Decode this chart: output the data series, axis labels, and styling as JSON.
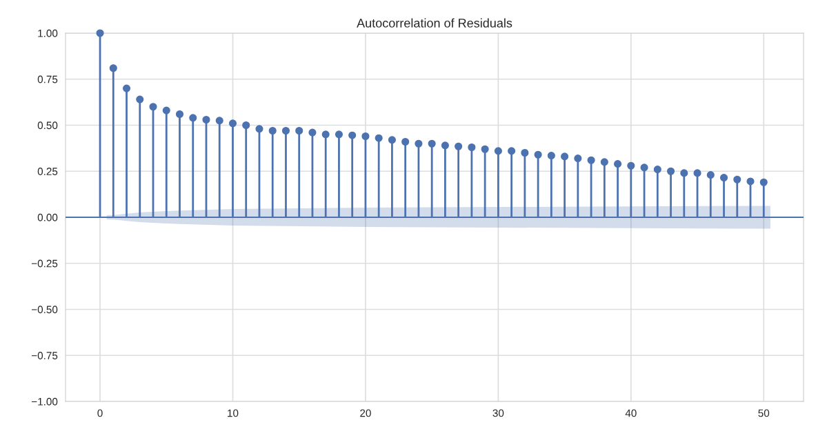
{
  "chart_data": {
    "type": "lollipop",
    "title": "Autocorrelation of Residuals",
    "x": [
      0,
      1,
      2,
      3,
      4,
      5,
      6,
      7,
      8,
      9,
      10,
      11,
      12,
      13,
      14,
      15,
      16,
      17,
      18,
      19,
      20,
      21,
      22,
      23,
      24,
      25,
      26,
      27,
      28,
      29,
      30,
      31,
      32,
      33,
      34,
      35,
      36,
      37,
      38,
      39,
      40,
      41,
      42,
      43,
      44,
      45,
      46,
      47,
      48,
      49,
      50
    ],
    "series": [
      {
        "type": "line",
        "color": "#4c72b0",
        "x": [
          -2.6,
          0.5,
          1,
          2,
          3,
          5,
          10,
          20,
          30,
          40,
          50,
          50.5,
          53
        ],
        "marker": "none",
        "values": [
          0,
          0,
          0,
          0,
          0,
          0,
          0,
          0,
          0,
          0,
          0,
          0,
          0
        ],
        "lower": [
          null,
          -0.012,
          -0.012,
          -0.02,
          -0.026,
          -0.034,
          -0.045,
          -0.052,
          -0.056,
          -0.059,
          -0.062,
          -0.062,
          null
        ],
        "upper": [
          null,
          0.012,
          0.012,
          0.02,
          0.026,
          0.034,
          0.045,
          0.052,
          0.056,
          0.059,
          0.062,
          0.062,
          null
        ]
      },
      {
        "type": "lollipop",
        "color": "#4c72b0",
        "values": [
          1.0,
          0.81,
          0.7,
          0.64,
          0.6,
          0.58,
          0.56,
          0.54,
          0.53,
          0.525,
          0.51,
          0.5,
          0.48,
          0.47,
          0.47,
          0.47,
          0.46,
          0.45,
          0.45,
          0.445,
          0.44,
          0.43,
          0.42,
          0.41,
          0.4,
          0.4,
          0.39,
          0.385,
          0.38,
          0.37,
          0.36,
          0.36,
          0.35,
          0.34,
          0.335,
          0.33,
          0.32,
          0.31,
          0.3,
          0.29,
          0.28,
          0.27,
          0.26,
          0.25,
          0.24,
          0.24,
          0.23,
          0.215,
          0.205,
          0.195,
          0.19
        ]
      }
    ],
    "xlim": [
      -2.6,
      53
    ],
    "xticks": [
      0,
      10,
      20,
      30,
      40,
      50
    ],
    "ylim": [
      -1,
      1
    ],
    "yticks": [
      {
        "value": -1,
        "label": "−1.00"
      },
      {
        "value": -0.75,
        "label": "−0.75"
      },
      {
        "value": -0.5,
        "label": "−0.50"
      },
      {
        "value": -0.25,
        "label": "−0.25"
      },
      {
        "value": 0,
        "label": "0.00"
      },
      {
        "value": 0.25,
        "label": "0.25"
      },
      {
        "value": 0.5,
        "label": "0.50"
      },
      {
        "value": 0.75,
        "label": "0.75"
      },
      {
        "value": 1,
        "label": "1.00"
      }
    ],
    "grid": true,
    "marker": "circle"
  }
}
